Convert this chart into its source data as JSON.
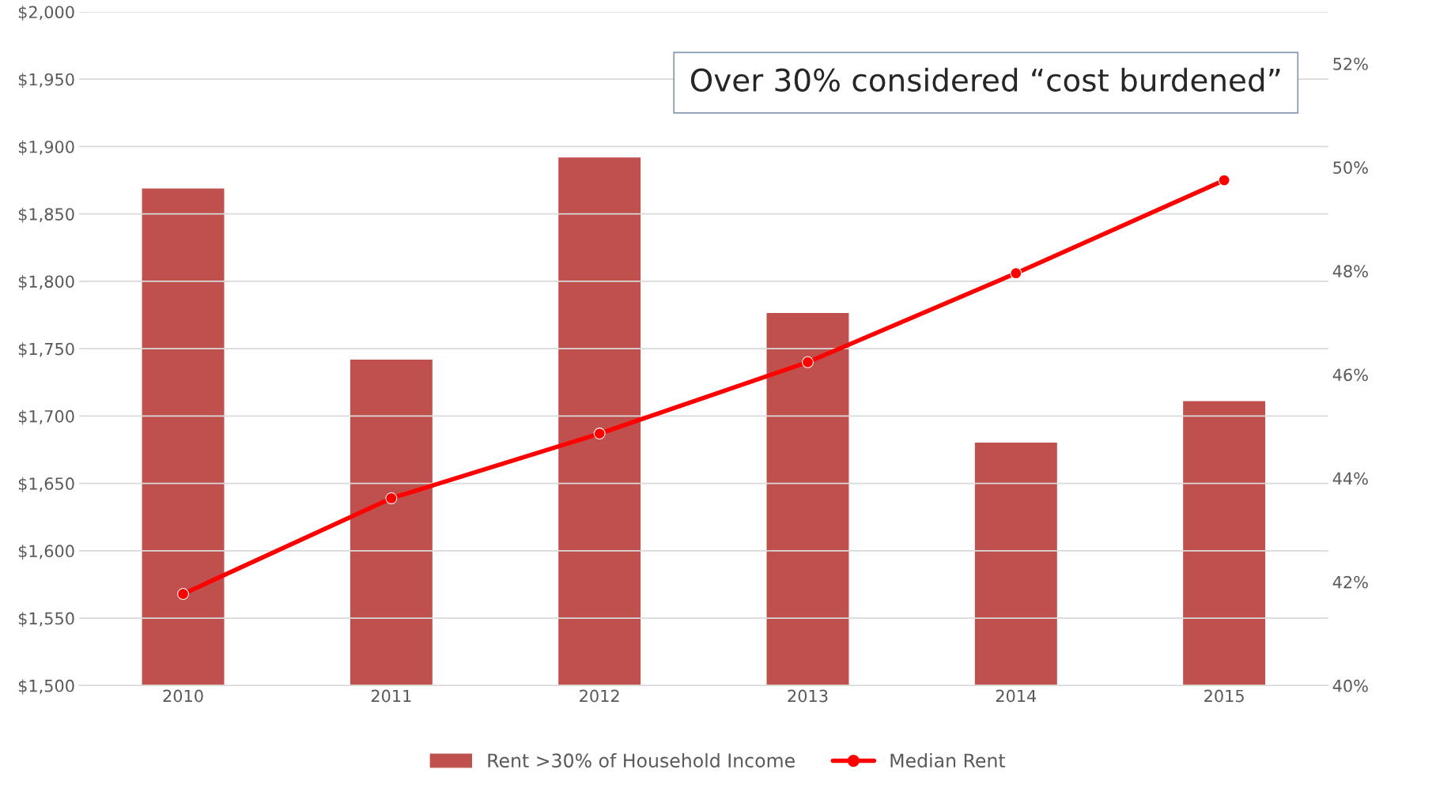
{
  "chart_data": {
    "type": "bar",
    "categories": [
      "2010",
      "2011",
      "2012",
      "2013",
      "2014",
      "2015"
    ],
    "series": [
      {
        "name": "Rent >30% of Household Income",
        "axis": "y2",
        "color": "#c0504d",
        "values": [
          49.6,
          46.3,
          50.2,
          47.2,
          44.7,
          45.5
        ]
      },
      {
        "name": "Median Rent",
        "type": "line",
        "axis": "y",
        "color": "#ff0000",
        "marker": "circle",
        "values": [
          1568,
          1639,
          1687,
          1740,
          1806,
          1875
        ]
      }
    ],
    "ylim": [
      1500,
      2000
    ],
    "yticks": [
      {
        "value": 1500,
        "label": "$1,500"
      },
      {
        "value": 1550,
        "label": "$1,550"
      },
      {
        "value": 1600,
        "label": "$1,600"
      },
      {
        "value": 1650,
        "label": "$1,650"
      },
      {
        "value": 1700,
        "label": "$1,700"
      },
      {
        "value": 1750,
        "label": "$1,750"
      },
      {
        "value": 1800,
        "label": "$1,800"
      },
      {
        "value": 1850,
        "label": "$1,850"
      },
      {
        "value": 1900,
        "label": "$1,900"
      },
      {
        "value": 1950,
        "label": "$1,950"
      },
      {
        "value": 2000,
        "label": "$2,000"
      }
    ],
    "y2lim": [
      40,
      53
    ],
    "y2ticks": [
      {
        "value": 40,
        "label": "40%"
      },
      {
        "value": 42,
        "label": "42%"
      },
      {
        "value": 44,
        "label": "44%"
      },
      {
        "value": 46,
        "label": "46%"
      },
      {
        "value": 48,
        "label": "48%"
      },
      {
        "value": 50,
        "label": "50%"
      },
      {
        "value": 52,
        "label": "52%"
      }
    ],
    "grid": "y",
    "legend": "bottom",
    "annotations": [
      "Over 30% considered “cost burdened”"
    ]
  }
}
